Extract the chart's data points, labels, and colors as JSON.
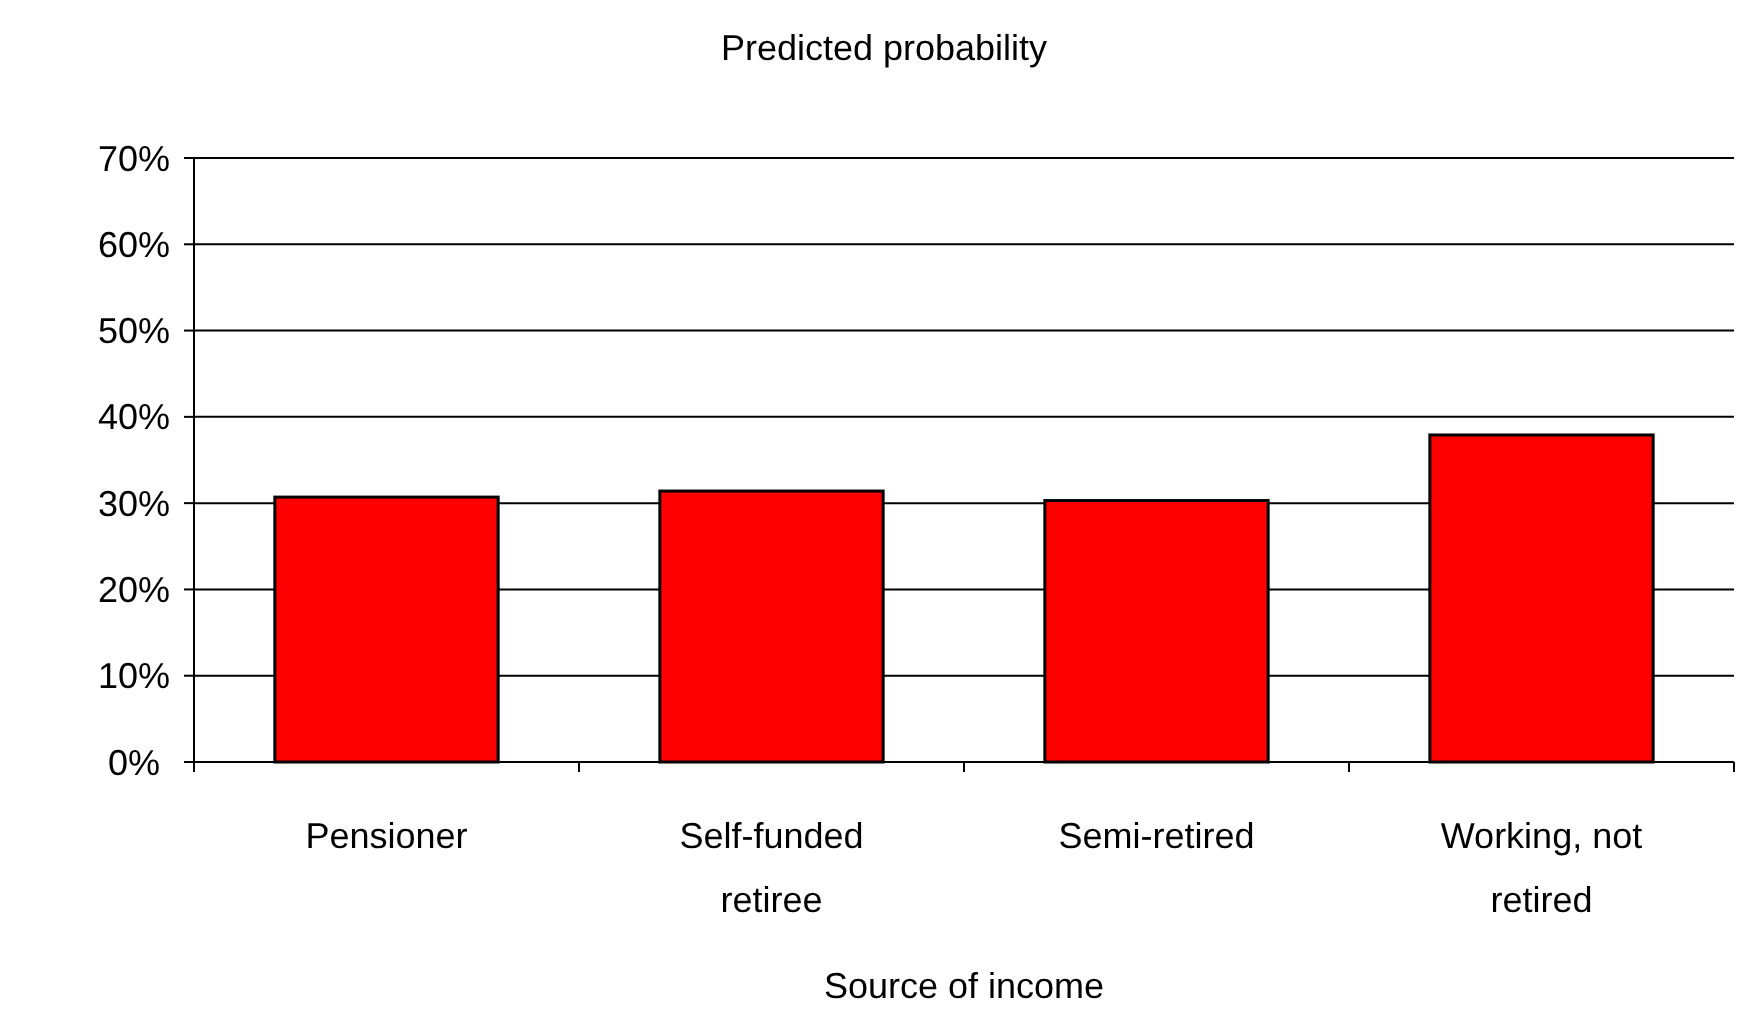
{
  "chart_data": {
    "type": "bar",
    "title": "Predicted probability",
    "xlabel": "Source of income",
    "categories": [
      "Pensioner",
      "Self-funded retiree",
      "Semi-retired",
      "Working, not retired"
    ],
    "values": [
      30.7,
      31.4,
      30.3,
      37.9
    ],
    "color": "#ff0000",
    "ylim": [
      0,
      70
    ],
    "yticks": [
      {
        "value": 0,
        "label": "0%"
      },
      {
        "value": 10,
        "label": "10%"
      },
      {
        "value": 20,
        "label": "20%"
      },
      {
        "value": 30,
        "label": "30%"
      },
      {
        "value": 40,
        "label": "40%"
      },
      {
        "value": 50,
        "label": "50%"
      },
      {
        "value": 60,
        "label": "60%"
      },
      {
        "value": 70,
        "label": "70%"
      }
    ],
    "grid": "y"
  }
}
